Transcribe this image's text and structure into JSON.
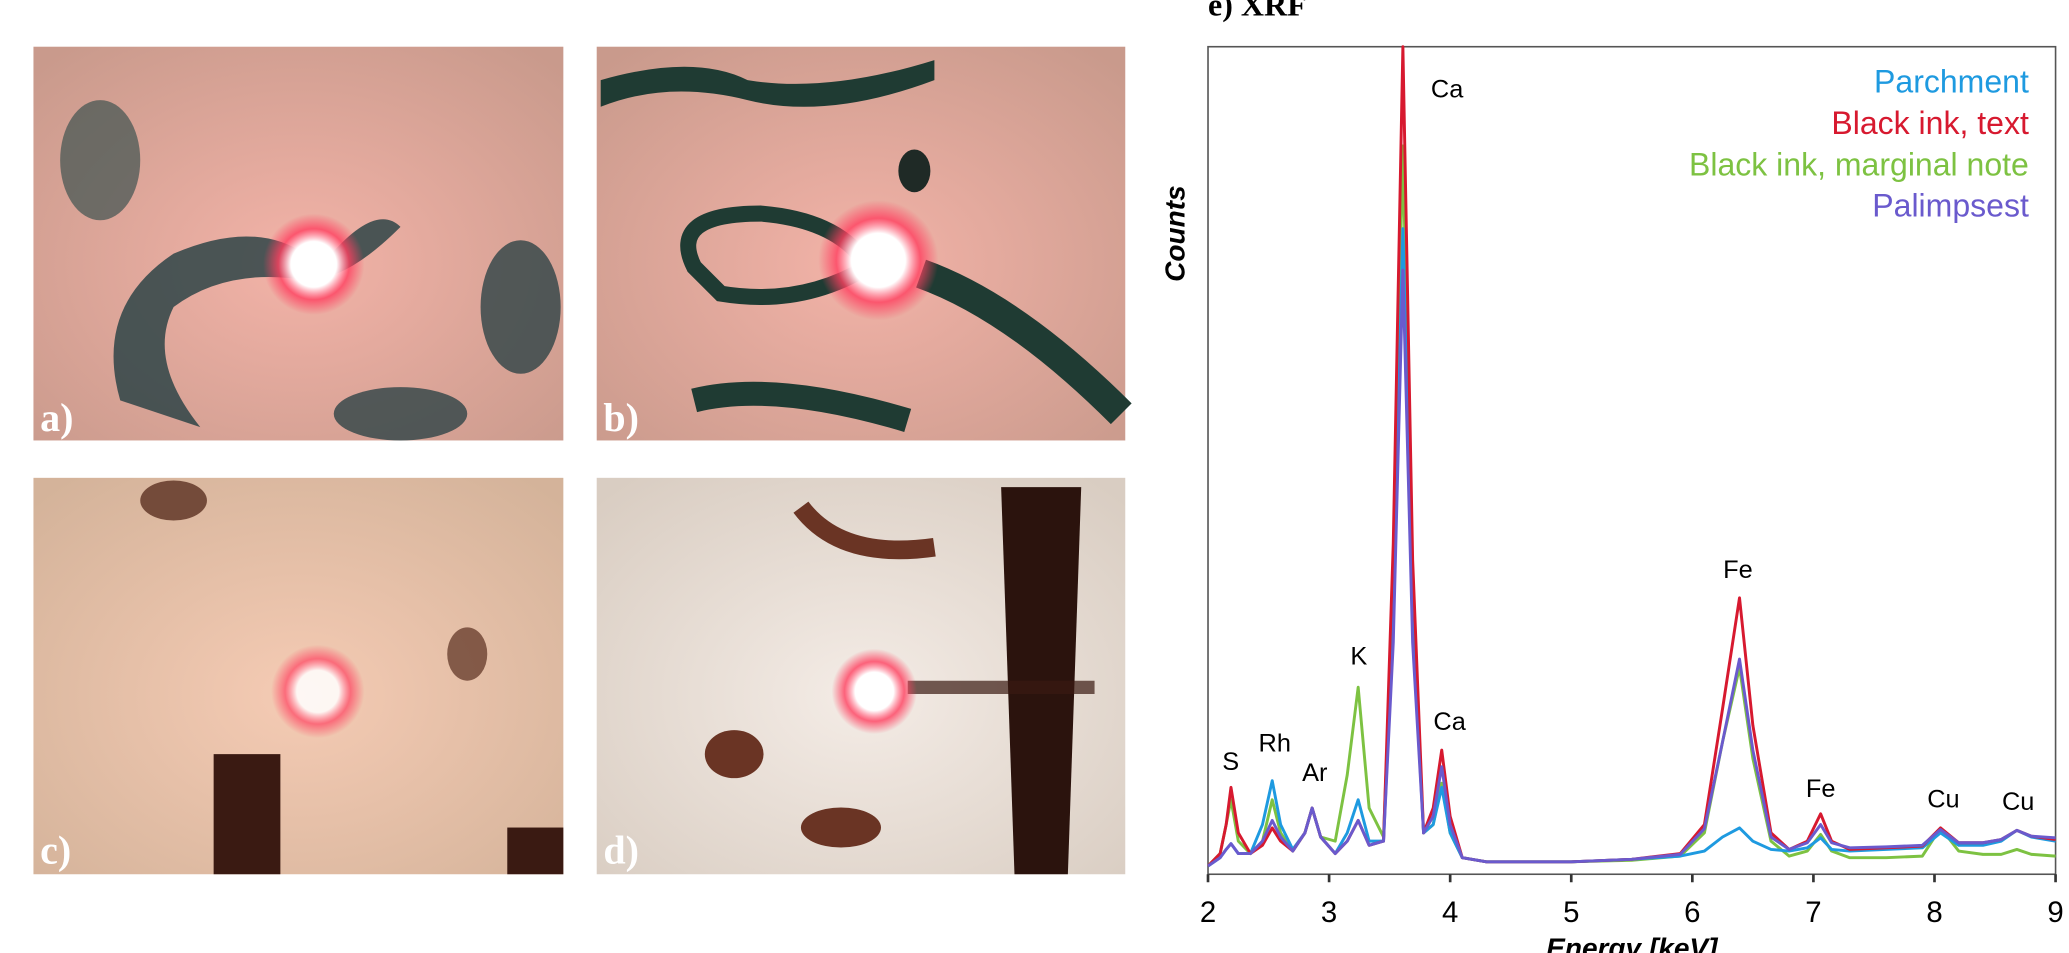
{
  "figure": {
    "panel_labels": [
      "a)",
      "b)",
      "c)",
      "d)"
    ]
  },
  "chart_data": {
    "type": "line",
    "title": "e) XRF",
    "x_label": "Energy [keV]",
    "y_label": "Counts",
    "xlim": [
      2,
      9
    ],
    "xticks": [
      2,
      3,
      4,
      5,
      6,
      7,
      8,
      9
    ],
    "ylim": [
      0,
      100
    ],
    "legend": "upper right",
    "annotations": [
      "S",
      "Rh",
      "Ar",
      "K",
      "Ca",
      "Ca",
      "Fe",
      "Fe",
      "Cu",
      "Cu"
    ],
    "x": [
      2.0,
      2.1,
      2.15,
      2.19,
      2.25,
      2.35,
      2.45,
      2.53,
      2.6,
      2.7,
      2.8,
      2.86,
      2.93,
      3.05,
      3.15,
      3.24,
      3.33,
      3.45,
      3.53,
      3.61,
      3.69,
      3.78,
      3.86,
      3.93,
      4.0,
      4.1,
      4.3,
      4.6,
      5.0,
      5.5,
      5.9,
      6.1,
      6.25,
      6.39,
      6.5,
      6.65,
      6.8,
      6.95,
      7.06,
      7.15,
      7.3,
      7.6,
      7.9,
      8.05,
      8.2,
      8.4,
      8.55,
      8.68,
      8.8,
      9.0
    ],
    "series": [
      {
        "name": "Parchment",
        "color": "#1e9ae0",
        "values": [
          1,
          2,
          3,
          3.7,
          2.5,
          2.5,
          6,
          11.3,
          6,
          3,
          5,
          8,
          4.5,
          2.5,
          5,
          9,
          4,
          4,
          30,
          78,
          30,
          5,
          6,
          10.5,
          5,
          2,
          1.5,
          1.5,
          1.5,
          1.8,
          2.2,
          2.8,
          4.5,
          5.6,
          4,
          3,
          2.8,
          3.2,
          4.4,
          3,
          2.8,
          3,
          3.2,
          5,
          3.5,
          3.5,
          4,
          5.3,
          4.5,
          4
        ]
      },
      {
        "name": "Black ink, text",
        "color": "#d7192f",
        "values": [
          1,
          2.5,
          6,
          10.5,
          5,
          2.5,
          3.5,
          5.6,
          4,
          2.8,
          5,
          8,
          4.5,
          2.5,
          4,
          6.5,
          3.5,
          4,
          40,
          100,
          38,
          5,
          8,
          15,
          7,
          2,
          1.5,
          1.5,
          1.5,
          1.8,
          2.5,
          6,
          20,
          33.4,
          18,
          5,
          3,
          4,
          7.3,
          4,
          3,
          3.2,
          3.4,
          5.6,
          3.8,
          3.8,
          4.2,
          5.3,
          4.6,
          4.2
        ]
      },
      {
        "name": "Black ink, marginal note",
        "color": "#7dc242",
        "values": [
          1,
          2.5,
          6,
          9,
          4,
          2.5,
          4,
          9,
          5,
          2.8,
          5,
          8,
          4.5,
          4,
          12,
          22.6,
          8,
          4.5,
          35,
          88,
          33,
          5,
          6,
          11,
          5,
          2,
          1.5,
          1.5,
          1.5,
          1.7,
          2.2,
          5,
          16,
          25,
          14,
          4,
          2.2,
          2.8,
          4.8,
          2.8,
          2,
          2,
          2.2,
          5.6,
          2.8,
          2.4,
          2.4,
          3,
          2.4,
          2.2
        ]
      },
      {
        "name": "Palimpsest",
        "color": "#6a5acd",
        "values": [
          1,
          2,
          3,
          3.7,
          2.5,
          2.5,
          4,
          6.5,
          4.5,
          2.8,
          5,
          8,
          4.5,
          2.5,
          4,
          6.5,
          3.5,
          4,
          28,
          73,
          28,
          5,
          7,
          13,
          6,
          2,
          1.5,
          1.5,
          1.5,
          1.8,
          2.4,
          5.5,
          16,
          26,
          15,
          4.5,
          3,
          3.8,
          6,
          3.8,
          3.2,
          3.3,
          3.5,
          5.4,
          3.8,
          3.8,
          4.2,
          5.3,
          4.6,
          4.4
        ]
      }
    ]
  }
}
